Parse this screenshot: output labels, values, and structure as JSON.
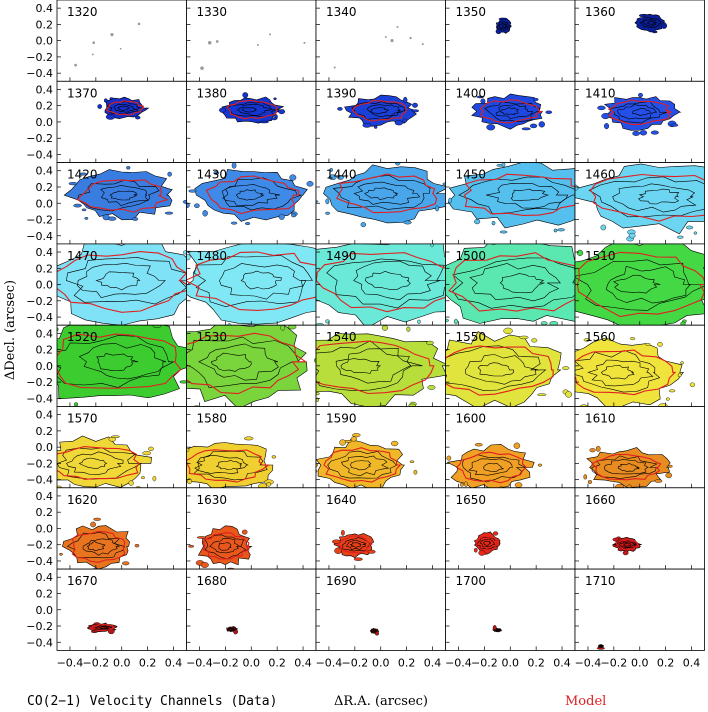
{
  "chart_data": {
    "type": "heatmap",
    "grid": {
      "rows": 8,
      "cols": 5
    },
    "channels": [
      1320,
      1330,
      1340,
      1350,
      1360,
      1370,
      1380,
      1390,
      1400,
      1410,
      1420,
      1430,
      1440,
      1450,
      1460,
      1470,
      1480,
      1490,
      1500,
      1510,
      1520,
      1530,
      1540,
      1550,
      1560,
      1570,
      1580,
      1590,
      1600,
      1610,
      1620,
      1630,
      1640,
      1650,
      1660,
      1670,
      1680,
      1690,
      1700,
      1710
    ],
    "xlabel": "ΔR.A. (arcsec)",
    "ylabel": "ΔDecl. (arcsec)",
    "xticks": [
      "−0.4",
      "−0.2",
      "0.0",
      "0.2",
      "0.4"
    ],
    "yticks": [
      "0.4",
      "0.2",
      "0.0",
      "−0.2",
      "−0.4"
    ],
    "xlim": [
      -0.5,
      0.5
    ],
    "ylim": [
      -0.5,
      0.5
    ],
    "footer_left": "CO(2−1) Velocity Channels (Data)",
    "footer_right": "Model",
    "colors": {
      "model_contour": "#e02020",
      "data_contour": "#000000",
      "channel_fill": [
        "#ffffff",
        "#ffffff",
        "#ffffff",
        "#0a1f9a",
        "#0a1f9a",
        "#1530c8",
        "#1535d0",
        "#1a40d8",
        "#1f48e0",
        "#2450e8",
        "#3a7de0",
        "#3f8ae6",
        "#4aa6ea",
        "#55bfee",
        "#6cd6f2",
        "#80e2f6",
        "#80e8f4",
        "#6ae8d8",
        "#5ae8b0",
        "#44d844",
        "#3ccc30",
        "#7ad43c",
        "#b8de3c",
        "#e0e43c",
        "#f0e43c",
        "#f0d838",
        "#f0d030",
        "#f0b828",
        "#f0a024",
        "#e88c22",
        "#e87420",
        "#e8581c",
        "#e84018",
        "#e82818",
        "#c81818",
        "#b01818",
        "#b01818",
        "#b01818",
        "#b01818",
        "#b01818"
      ]
    },
    "emission": [
      {
        "ch": 1320,
        "cx": 0,
        "cy": 0,
        "rx": 0,
        "ry": 0,
        "model": false
      },
      {
        "ch": 1330,
        "cx": 0,
        "cy": 0,
        "rx": 0,
        "ry": 0,
        "model": false
      },
      {
        "ch": 1340,
        "cx": 0,
        "cy": 0,
        "rx": 0,
        "ry": 0,
        "model": false
      },
      {
        "ch": 1350,
        "cx": -0.05,
        "cy": 0.18,
        "rx": 0.06,
        "ry": 0.08,
        "model": false
      },
      {
        "ch": 1360,
        "cx": 0.08,
        "cy": 0.22,
        "rx": 0.1,
        "ry": 0.1,
        "model": false
      },
      {
        "ch": 1370,
        "cx": 0.02,
        "cy": 0.17,
        "rx": 0.16,
        "ry": 0.12,
        "model": true
      },
      {
        "ch": 1380,
        "cx": 0.0,
        "cy": 0.15,
        "rx": 0.22,
        "ry": 0.15,
        "model": true
      },
      {
        "ch": 1390,
        "cx": 0.0,
        "cy": 0.14,
        "rx": 0.25,
        "ry": 0.17,
        "model": true
      },
      {
        "ch": 1400,
        "cx": 0.0,
        "cy": 0.13,
        "rx": 0.26,
        "ry": 0.19,
        "model": true
      },
      {
        "ch": 1410,
        "cx": 0.0,
        "cy": 0.12,
        "rx": 0.27,
        "ry": 0.2,
        "model": true
      },
      {
        "ch": 1420,
        "cx": 0.0,
        "cy": 0.1,
        "rx": 0.38,
        "ry": 0.28,
        "model": true
      },
      {
        "ch": 1430,
        "cx": 0.02,
        "cy": 0.1,
        "rx": 0.4,
        "ry": 0.3,
        "model": true
      },
      {
        "ch": 1440,
        "cx": 0.05,
        "cy": 0.12,
        "rx": 0.45,
        "ry": 0.32,
        "model": true
      },
      {
        "ch": 1450,
        "cx": 0.1,
        "cy": 0.1,
        "rx": 0.55,
        "ry": 0.36,
        "model": true
      },
      {
        "ch": 1460,
        "cx": 0.15,
        "cy": 0.08,
        "rx": 0.6,
        "ry": 0.4,
        "model": true
      },
      {
        "ch": 1470,
        "cx": 0.0,
        "cy": 0.05,
        "rx": 0.6,
        "ry": 0.5,
        "model": true
      },
      {
        "ch": 1480,
        "cx": 0.05,
        "cy": 0.05,
        "rx": 0.6,
        "ry": 0.5,
        "model": true
      },
      {
        "ch": 1490,
        "cx": 0.05,
        "cy": 0.05,
        "rx": 0.62,
        "ry": 0.52,
        "model": true
      },
      {
        "ch": 1500,
        "cx": 0.05,
        "cy": 0.02,
        "rx": 0.62,
        "ry": 0.52,
        "model": true
      },
      {
        "ch": 1510,
        "cx": 0.0,
        "cy": 0.0,
        "rx": 0.62,
        "ry": 0.52,
        "model": true
      },
      {
        "ch": 1520,
        "cx": -0.05,
        "cy": 0.05,
        "rx": 0.6,
        "ry": 0.5,
        "model": true
      },
      {
        "ch": 1530,
        "cx": -0.1,
        "cy": 0.05,
        "rx": 0.55,
        "ry": 0.5,
        "model": true
      },
      {
        "ch": 1540,
        "cx": -0.1,
        "cy": 0.0,
        "rx": 0.55,
        "ry": 0.45,
        "model": true
      },
      {
        "ch": 1550,
        "cx": -0.12,
        "cy": -0.05,
        "rx": 0.5,
        "ry": 0.42,
        "model": true
      },
      {
        "ch": 1560,
        "cx": -0.15,
        "cy": -0.08,
        "rx": 0.45,
        "ry": 0.38,
        "model": true
      },
      {
        "ch": 1570,
        "cx": -0.2,
        "cy": -0.2,
        "rx": 0.4,
        "ry": 0.3,
        "model": true
      },
      {
        "ch": 1580,
        "cx": -0.2,
        "cy": -0.22,
        "rx": 0.36,
        "ry": 0.28,
        "model": true
      },
      {
        "ch": 1590,
        "cx": -0.15,
        "cy": -0.22,
        "rx": 0.33,
        "ry": 0.28,
        "model": true
      },
      {
        "ch": 1600,
        "cx": -0.15,
        "cy": -0.25,
        "rx": 0.3,
        "ry": 0.25,
        "model": true
      },
      {
        "ch": 1610,
        "cx": -0.1,
        "cy": -0.25,
        "rx": 0.3,
        "ry": 0.22,
        "model": true
      },
      {
        "ch": 1620,
        "cx": -0.18,
        "cy": -0.22,
        "rx": 0.25,
        "ry": 0.25,
        "model": true
      },
      {
        "ch": 1630,
        "cx": -0.2,
        "cy": -0.22,
        "rx": 0.2,
        "ry": 0.22,
        "model": true
      },
      {
        "ch": 1640,
        "cx": -0.2,
        "cy": -0.2,
        "rx": 0.14,
        "ry": 0.14,
        "model": true
      },
      {
        "ch": 1650,
        "cx": -0.18,
        "cy": -0.18,
        "rx": 0.1,
        "ry": 0.12,
        "model": true
      },
      {
        "ch": 1660,
        "cx": -0.1,
        "cy": -0.2,
        "rx": 0.1,
        "ry": 0.08,
        "model": true
      },
      {
        "ch": 1670,
        "cx": -0.15,
        "cy": -0.22,
        "rx": 0.1,
        "ry": 0.05,
        "model": true
      },
      {
        "ch": 1680,
        "cx": -0.15,
        "cy": -0.24,
        "rx": 0.04,
        "ry": 0.03,
        "model": false
      },
      {
        "ch": 1690,
        "cx": -0.05,
        "cy": -0.26,
        "rx": 0.03,
        "ry": 0.03,
        "model": false
      },
      {
        "ch": 1700,
        "cx": -0.1,
        "cy": -0.25,
        "rx": 0.03,
        "ry": 0.02,
        "model": false
      },
      {
        "ch": 1710,
        "cx": -0.3,
        "cy": -0.45,
        "rx": 0.02,
        "ry": 0.02,
        "model": false
      }
    ]
  }
}
